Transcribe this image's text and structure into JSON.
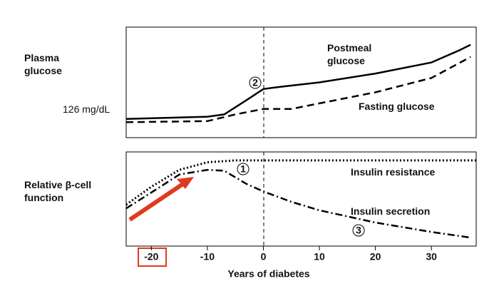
{
  "chart_data": [
    {
      "type": "line",
      "y_label": "Plasma glucose",
      "reference_label": "126 mg/dL",
      "xlim": [
        -24.5,
        38
      ],
      "ylim": [
        0,
        100
      ],
      "annotation": "2",
      "series": [
        {
          "name": "Postmeal glucose",
          "color": "#000000",
          "style": "solid",
          "x": [
            -24.5,
            -10,
            -7,
            -3,
            0,
            3,
            10,
            20,
            30,
            35,
            37
          ],
          "values": [
            17,
            19,
            21,
            34,
            44,
            46,
            50,
            58,
            68,
            79,
            84
          ]
        },
        {
          "name": "Fasting glucose",
          "color": "#000000",
          "style": "dashed",
          "x": [
            -24.5,
            -10,
            -5,
            0,
            5,
            10,
            20,
            30,
            37
          ],
          "values": [
            14,
            15,
            21,
            26,
            26,
            31,
            41,
            54,
            73
          ]
        }
      ]
    },
    {
      "type": "line",
      "y_label": "Relative β-cell function",
      "x_label": "Years of diabetes",
      "xlim": [
        -24.5,
        38
      ],
      "ylim": [
        0,
        100
      ],
      "xticks": [
        -20,
        -10,
        0,
        10,
        20,
        30
      ],
      "annotations": [
        "1",
        "3"
      ],
      "series": [
        {
          "name": "Insulin resistance",
          "color": "#000000",
          "style": "dotted",
          "x": [
            -24.5,
            -20,
            -15,
            -10,
            -5,
            0,
            38
          ],
          "values": [
            44,
            63,
            81,
            89,
            91,
            91,
            91
          ]
        },
        {
          "name": "Insulin secretion",
          "color": "#000000",
          "style": "dashdot",
          "x": [
            -24.5,
            -20,
            -15,
            -10,
            -7,
            -3,
            0,
            5,
            10,
            20,
            30,
            37
          ],
          "values": [
            40,
            57,
            76,
            81,
            80,
            66,
            58,
            47,
            38,
            25,
            15,
            9
          ]
        }
      ]
    }
  ]
}
